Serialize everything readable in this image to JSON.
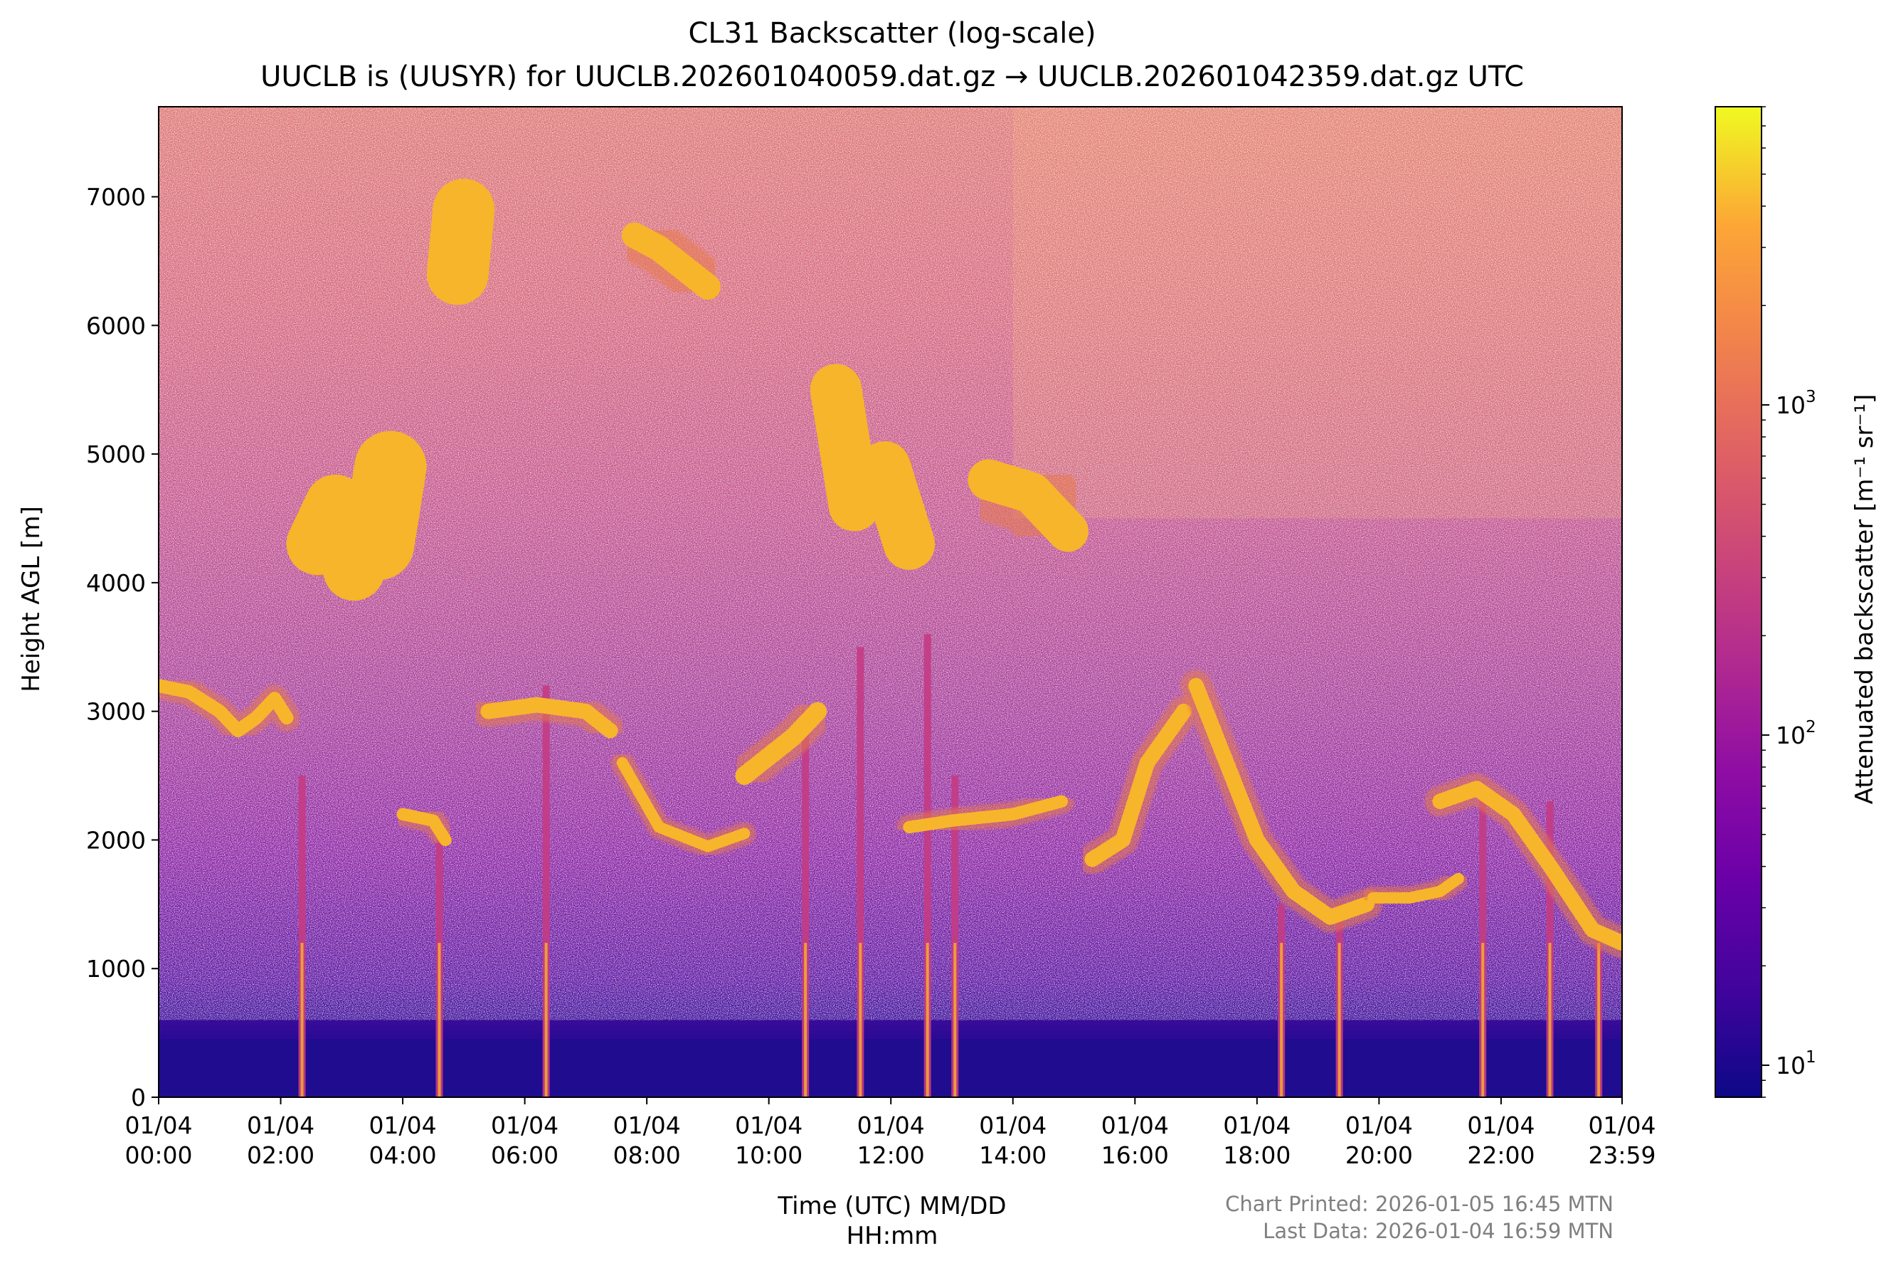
{
  "chart_data": {
    "type": "heatmap",
    "title": "CL31 Backscatter (log-scale)",
    "subtitle": "UUCLB is (UUSYR) for UUCLB.202601040059.dat.gz → UUCLB.202601042359.dat.gz UTC",
    "xlabel_line1": "Time (UTC) MM/DD",
    "xlabel_line2": "HH:mm",
    "ylabel": "Height AGL [m]",
    "colorbar_label": "Attenuated backscatter [m⁻¹ sr⁻¹]",
    "colormap": "plasma",
    "color_scale": "log",
    "color_range": [
      8,
      8000
    ],
    "x_range_hours": [
      0,
      23.983
    ],
    "ylim": [
      0,
      7700
    ],
    "x_ticks": [
      {
        "hour": 0,
        "date": "01/04",
        "time": "00:00"
      },
      {
        "hour": 2,
        "date": "01/04",
        "time": "02:00"
      },
      {
        "hour": 4,
        "date": "01/04",
        "time": "04:00"
      },
      {
        "hour": 6,
        "date": "01/04",
        "time": "06:00"
      },
      {
        "hour": 8,
        "date": "01/04",
        "time": "08:00"
      },
      {
        "hour": 10,
        "date": "01/04",
        "time": "10:00"
      },
      {
        "hour": 12,
        "date": "01/04",
        "time": "12:00"
      },
      {
        "hour": 14,
        "date": "01/04",
        "time": "14:00"
      },
      {
        "hour": 16,
        "date": "01/04",
        "time": "16:00"
      },
      {
        "hour": 18,
        "date": "01/04",
        "time": "18:00"
      },
      {
        "hour": 20,
        "date": "01/04",
        "time": "20:00"
      },
      {
        "hour": 22,
        "date": "01/04",
        "time": "22:00"
      },
      {
        "hour": 23.983,
        "date": "01/04",
        "time": "23:59"
      }
    ],
    "y_ticks": [
      0,
      1000,
      2000,
      3000,
      4000,
      5000,
      6000,
      7000
    ],
    "colorbar_ticks": [
      {
        "value": 10,
        "base": "10",
        "exp": "1"
      },
      {
        "value": 100,
        "base": "10",
        "exp": "2"
      },
      {
        "value": 1000,
        "base": "10",
        "exp": "3"
      }
    ],
    "cloud_layers": [
      {
        "name": "morning-mid-layer",
        "points": [
          [
            0,
            3200
          ],
          [
            0.5,
            3150
          ],
          [
            1,
            3000
          ],
          [
            1.3,
            2850
          ],
          [
            1.6,
            2950
          ],
          [
            1.9,
            3100
          ],
          [
            2.1,
            2950
          ]
        ],
        "thickness": 130
      },
      {
        "name": "high-plume-a",
        "points": [
          [
            2.6,
            4300
          ],
          [
            2.9,
            4600
          ],
          [
            3.2,
            4100
          ]
        ],
        "thickness": 600
      },
      {
        "name": "high-plume-b",
        "points": [
          [
            3.6,
            4300
          ],
          [
            3.8,
            4900
          ]
        ],
        "thickness": 700
      },
      {
        "name": "cirrus-early",
        "points": [
          [
            4.9,
            6400
          ],
          [
            5.0,
            6900
          ]
        ],
        "thickness": 600
      },
      {
        "name": "lower-scattered",
        "points": [
          [
            4.0,
            2200
          ],
          [
            4.5,
            2150
          ],
          [
            4.7,
            2000
          ]
        ],
        "thickness": 120
      },
      {
        "name": "six-am-layer",
        "points": [
          [
            5.4,
            3000
          ],
          [
            6.2,
            3050
          ],
          [
            7.0,
            3000
          ],
          [
            7.4,
            2850
          ]
        ],
        "thickness": 150
      },
      {
        "name": "mid-scattered",
        "points": [
          [
            7.6,
            2600
          ],
          [
            8.2,
            2100
          ],
          [
            9.0,
            1950
          ],
          [
            9.6,
            2050
          ]
        ],
        "thickness": 110
      },
      {
        "name": "ten-am-layer",
        "points": [
          [
            9.6,
            2500
          ],
          [
            10.4,
            2800
          ],
          [
            10.8,
            3000
          ]
        ],
        "thickness": 180
      },
      {
        "name": "high-streak-11",
        "points": [
          [
            11.1,
            5500
          ],
          [
            11.4,
            4600
          ]
        ],
        "thickness": 500
      },
      {
        "name": "high-streak-12",
        "points": [
          [
            11.9,
            4900
          ],
          [
            12.3,
            4300
          ]
        ],
        "thickness": 500
      },
      {
        "name": "cirrus-8am",
        "points": [
          [
            7.8,
            6700
          ],
          [
            8.2,
            6600
          ],
          [
            9.0,
            6300
          ]
        ],
        "thickness": 250
      },
      {
        "name": "afternoon-layer",
        "points": [
          [
            12.3,
            2100
          ],
          [
            13.0,
            2150
          ],
          [
            14.0,
            2200
          ],
          [
            14.8,
            2300
          ]
        ],
        "thickness": 120
      },
      {
        "name": "high-streak-14",
        "points": [
          [
            13.6,
            4800
          ],
          [
            14.3,
            4700
          ],
          [
            14.9,
            4400
          ]
        ],
        "thickness": 400
      },
      {
        "name": "sixteen-layer",
        "points": [
          [
            15.3,
            1850
          ],
          [
            15.8,
            2000
          ],
          [
            16.2,
            2600
          ],
          [
            16.8,
            3000
          ]
        ],
        "thickness": 150
      },
      {
        "name": "seventeen-rise",
        "points": [
          [
            17.0,
            3200
          ],
          [
            17.5,
            2600
          ],
          [
            18.0,
            2000
          ],
          [
            18.6,
            1600
          ],
          [
            19.2,
            1400
          ],
          [
            19.8,
            1500
          ]
        ],
        "thickness": 150
      },
      {
        "name": "evening-layer",
        "points": [
          [
            19.9,
            1550
          ],
          [
            20.5,
            1550
          ],
          [
            21.0,
            1600
          ],
          [
            21.3,
            1700
          ]
        ],
        "thickness": 110
      },
      {
        "name": "late-layer",
        "points": [
          [
            21.0,
            2300
          ],
          [
            21.6,
            2400
          ],
          [
            22.2,
            2200
          ],
          [
            22.8,
            1800
          ],
          [
            23.5,
            1300
          ],
          [
            23.98,
            1200
          ]
        ],
        "thickness": 150
      }
    ],
    "precip_shafts": [
      {
        "hour": 2.35,
        "top": 2500
      },
      {
        "hour": 4.6,
        "top": 2000
      },
      {
        "hour": 6.35,
        "top": 3200
      },
      {
        "hour": 10.6,
        "top": 3000
      },
      {
        "hour": 11.5,
        "top": 3500
      },
      {
        "hour": 12.6,
        "top": 3600
      },
      {
        "hour": 13.05,
        "top": 2500
      },
      {
        "hour": 18.4,
        "top": 1500
      },
      {
        "hour": 19.35,
        "top": 1500
      },
      {
        "hour": 21.7,
        "top": 2300
      },
      {
        "hour": 22.8,
        "top": 2300
      },
      {
        "hour": 23.6,
        "top": 1300
      }
    ]
  },
  "footer": {
    "printed": "Chart Printed: 2026-01-05 16:45 MTN",
    "last_data": "Last Data: 2026-01-04 16:59 MTN"
  }
}
